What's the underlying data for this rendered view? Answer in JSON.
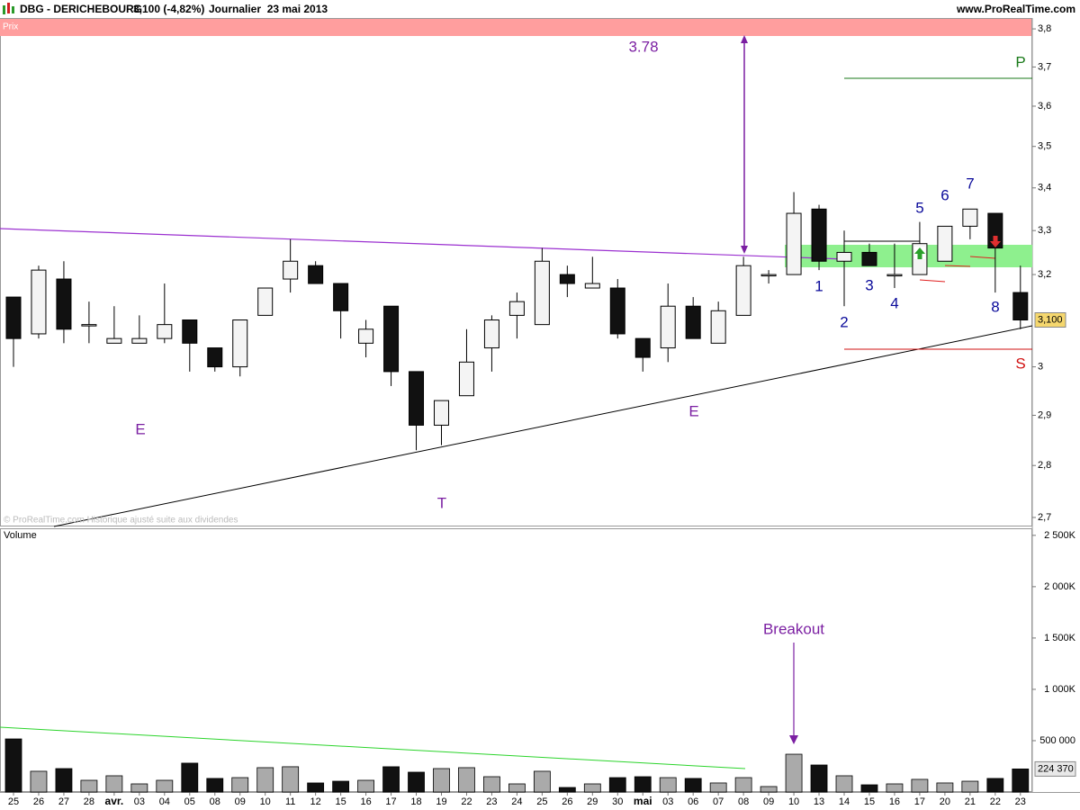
{
  "header": {
    "symbol": "DBG - DERICHEBOURG",
    "quote": "3,100 (-4,82%)",
    "period": "Journalier  23 mai 2013",
    "site": "www.ProRealTime.com"
  },
  "chart_data": [
    {
      "type": "candlestick",
      "title": "Prix",
      "watermark": "© ProRealTime.com Historique ajusté suite aux dividendes",
      "log_scale": true,
      "up_color": "#f4f4f4",
      "down_color": "#111111",
      "last_label": "3,100",
      "last_label_color": "#f5d76e",
      "categories": [
        "25",
        "26",
        "27",
        "28",
        "avr.",
        "03",
        "04",
        "05",
        "08",
        "09",
        "10",
        "11",
        "12",
        "15",
        "16",
        "17",
        "18",
        "19",
        "22",
        "23",
        "24",
        "25",
        "26",
        "29",
        "30",
        "mai",
        "03",
        "06",
        "07",
        "08",
        "09",
        "10",
        "13",
        "14",
        "15",
        "16",
        "17",
        "20",
        "21",
        "22",
        "23"
      ],
      "open": [
        3.15,
        3.07,
        3.19,
        3.09,
        3.05,
        3.05,
        3.06,
        3.1,
        3.04,
        3.0,
        3.11,
        3.19,
        3.22,
        3.18,
        3.05,
        3.13,
        2.99,
        2.88,
        2.94,
        3.04,
        3.11,
        3.09,
        3.2,
        3.17,
        3.17,
        3.06,
        3.04,
        3.13,
        3.05,
        3.11,
        3.2,
        3.2,
        3.35,
        3.23,
        3.25,
        3.2,
        3.2,
        3.23,
        3.31,
        3.34,
        3.16
      ],
      "high": [
        3.15,
        3.22,
        3.23,
        3.14,
        3.13,
        3.11,
        3.18,
        3.1,
        3.04,
        3.1,
        3.17,
        3.28,
        3.23,
        3.18,
        3.1,
        3.13,
        2.99,
        2.93,
        3.08,
        3.11,
        3.16,
        3.26,
        3.22,
        3.24,
        3.19,
        3.06,
        3.18,
        3.15,
        3.14,
        3.24,
        3.21,
        3.39,
        3.36,
        3.3,
        3.27,
        3.27,
        3.32,
        3.31,
        3.35,
        3.34,
        3.22
      ],
      "low": [
        3.0,
        3.06,
        3.05,
        3.05,
        3.05,
        3.05,
        3.05,
        2.99,
        2.99,
        2.98,
        3.11,
        3.16,
        3.18,
        3.06,
        3.02,
        2.96,
        2.83,
        2.84,
        2.94,
        2.99,
        3.06,
        3.09,
        3.15,
        3.17,
        3.06,
        2.99,
        3.01,
        3.06,
        3.05,
        3.11,
        3.18,
        3.2,
        3.21,
        3.13,
        3.22,
        3.17,
        3.2,
        3.23,
        3.28,
        3.16,
        3.08
      ],
      "close": [
        3.06,
        3.21,
        3.08,
        3.09,
        3.06,
        3.06,
        3.09,
        3.05,
        3.0,
        3.1,
        3.17,
        3.23,
        3.18,
        3.12,
        3.08,
        2.99,
        2.88,
        2.93,
        3.01,
        3.1,
        3.14,
        3.23,
        3.18,
        3.18,
        3.07,
        3.02,
        3.13,
        3.06,
        3.12,
        3.22,
        3.2,
        3.34,
        3.23,
        3.25,
        3.22,
        3.2,
        3.27,
        3.31,
        3.35,
        3.26,
        3.1
      ],
      "ylim": [
        2.683,
        3.829
      ],
      "yticks": [
        {
          "value": 3.8,
          "label": "3,8"
        },
        {
          "value": 3.7,
          "label": "3,7"
        },
        {
          "value": 3.6,
          "label": "3,6"
        },
        {
          "value": 3.5,
          "label": "3,5"
        },
        {
          "value": 3.4,
          "label": "3,4"
        },
        {
          "value": 3.3,
          "label": "3,3"
        },
        {
          "value": 3.2,
          "label": "3,2"
        },
        3,
        {
          "value": 2.9,
          "label": "2,9"
        },
        {
          "value": 2.8,
          "label": "2,8"
        },
        {
          "value": 2.7,
          "label": "2,7"
        }
      ],
      "annotations": [
        {
          "text": "3.78",
          "color": "#7b1fa2"
        },
        {
          "text": "E",
          "color": "#7b1fa2"
        },
        {
          "text": "T",
          "color": "#7b1fa2"
        },
        {
          "text": "E",
          "color": "#7b1fa2"
        },
        {
          "text": "P",
          "color": "#1a7a1a"
        },
        {
          "text": "S",
          "color": "#d01010"
        },
        {
          "text": "1",
          "color": "#0a0a9a"
        },
        {
          "text": "2",
          "color": "#0a0a9a"
        },
        {
          "text": "3",
          "color": "#0a0a9a"
        },
        {
          "text": "4",
          "color": "#0a0a9a"
        },
        {
          "text": "5",
          "color": "#0a0a9a"
        },
        {
          "text": "6",
          "color": "#0a0a9a"
        },
        {
          "text": "7",
          "color": "#0a0a9a"
        },
        {
          "text": "8",
          "color": "#0a0a9a"
        }
      ]
    },
    {
      "type": "bar",
      "title": "Volume",
      "up_color": "#aaaaaa",
      "down_color": "#111111",
      "last_value_label": "224 370",
      "values": [
        517000,
        202000,
        228000,
        114000,
        158000,
        79000,
        114000,
        281000,
        132000,
        140000,
        237000,
        246000,
        88000,
        105000,
        114000,
        246000,
        193000,
        228000,
        237000,
        149000,
        79000,
        202000,
        44000,
        79000,
        140000,
        149000,
        140000,
        132000,
        88000,
        140000,
        53000,
        368000,
        263000,
        158000,
        70000,
        79000,
        123000,
        88000,
        105000,
        132000,
        224370
      ],
      "ylim": [
        0,
        2560000
      ],
      "yticks": [
        {
          "value": 500000,
          "label": "500 000"
        },
        {
          "value": 1000000,
          "label": "1 000K"
        },
        {
          "value": 1500000,
          "label": "1 500K"
        },
        {
          "value": 2000000,
          "label": "2 000K"
        },
        {
          "value": 2500000,
          "label": "2 500K"
        }
      ],
      "annotations": [
        {
          "text": "Breakout",
          "color": "#7b1fa2"
        }
      ]
    }
  ]
}
